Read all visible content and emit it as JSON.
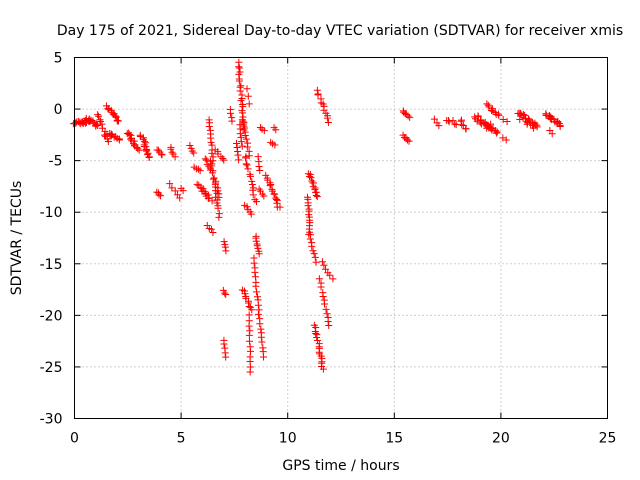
{
  "chart_data": {
    "type": "scatter",
    "title": "Day 175 of 2021, Sidereal Day-to-day VTEC variation (SDTVAR) for receiver xmis",
    "xlabel": "GPS time / hours",
    "ylabel": "SDTVAR / TECUs",
    "xlim": [
      0,
      25
    ],
    "ylim": [
      -30,
      5
    ],
    "xticks": [
      0,
      5,
      10,
      15,
      20,
      25
    ],
    "yticks": [
      5,
      0,
      -5,
      -10,
      -15,
      -20,
      -25,
      -30
    ],
    "xtick_labels": [
      "0",
      "5",
      "10",
      "15",
      "20",
      "25"
    ],
    "ytick_labels": [
      "5",
      "0",
      "-5",
      "-10",
      "-15",
      "-20",
      "-25",
      "-30"
    ],
    "grid": true,
    "marker": "plus",
    "color": "#ff0000",
    "segments": [
      {
        "from": [
          0.0,
          -1.3
        ],
        "to": [
          0.6,
          -1.3
        ],
        "n": 14,
        "spread": 0.25
      },
      {
        "from": [
          0.5,
          -1.0
        ],
        "to": [
          1.1,
          -1.5
        ],
        "n": 16,
        "spread": 0.45
      },
      {
        "from": [
          1.1,
          -0.5
        ],
        "to": [
          1.3,
          -1.8
        ],
        "n": 6,
        "spread": 0.2
      },
      {
        "from": [
          1.5,
          0.2
        ],
        "to": [
          2.1,
          -1.2
        ],
        "n": 14,
        "spread": 0.25
      },
      {
        "from": [
          1.5,
          -2.3
        ],
        "to": [
          2.1,
          -2.9
        ],
        "n": 12,
        "spread": 0.35
      },
      {
        "from": [
          1.4,
          -2.5
        ],
        "to": [
          1.6,
          -3.1
        ],
        "n": 4,
        "spread": 0.1
      },
      {
        "from": [
          2.5,
          -2.3
        ],
        "to": [
          3.0,
          -4.0
        ],
        "n": 14,
        "spread": 0.3
      },
      {
        "from": [
          3.1,
          -2.5
        ],
        "to": [
          3.5,
          -4.5
        ],
        "n": 12,
        "spread": 0.3
      },
      {
        "from": [
          3.3,
          -3.5
        ],
        "to": [
          3.5,
          -4.7
        ],
        "n": 4,
        "spread": 0.15
      },
      {
        "from": [
          3.9,
          -3.9
        ],
        "to": [
          4.1,
          -4.5
        ],
        "n": 5,
        "spread": 0.15
      },
      {
        "from": [
          3.85,
          -8.0
        ],
        "to": [
          4.05,
          -8.4
        ],
        "n": 4,
        "spread": 0.1
      },
      {
        "from": [
          4.5,
          -3.7
        ],
        "to": [
          4.7,
          -4.6
        ],
        "n": 5,
        "spread": 0.15
      },
      {
        "from": [
          4.5,
          -7.3
        ],
        "to": [
          4.9,
          -8.6
        ],
        "n": 5,
        "spread": 0.2
      },
      {
        "from": [
          5.0,
          -7.7
        ],
        "to": [
          5.1,
          -7.9
        ],
        "n": 2,
        "spread": 0.05
      },
      {
        "from": [
          5.4,
          -3.5
        ],
        "to": [
          5.6,
          -4.3
        ],
        "n": 4,
        "spread": 0.1
      },
      {
        "from": [
          5.6,
          -5.6
        ],
        "to": [
          5.9,
          -6.0
        ],
        "n": 4,
        "spread": 0.1
      },
      {
        "from": [
          5.8,
          -7.2
        ],
        "to": [
          6.4,
          -8.8
        ],
        "n": 14,
        "spread": 0.3
      },
      {
        "from": [
          6.1,
          -4.8
        ],
        "to": [
          6.4,
          -6.0
        ],
        "n": 6,
        "spread": 0.2
      },
      {
        "from": [
          6.2,
          -11.3
        ],
        "to": [
          6.5,
          -11.9
        ],
        "n": 4,
        "spread": 0.15
      },
      {
        "from": [
          6.3,
          -1.0
        ],
        "to": [
          6.5,
          -5.0
        ],
        "n": 12,
        "spread": 0.12
      },
      {
        "from": [
          6.4,
          -5.0
        ],
        "to": [
          6.8,
          -10.4
        ],
        "n": 18,
        "spread": 0.3
      },
      {
        "from": [
          6.6,
          -7.0
        ],
        "to": [
          6.8,
          -8.6
        ],
        "n": 6,
        "spread": 0.2
      },
      {
        "from": [
          6.6,
          -4.0
        ],
        "to": [
          7.0,
          -5.0
        ],
        "n": 6,
        "spread": 0.2
      },
      {
        "from": [
          7.0,
          -12.9
        ],
        "to": [
          7.1,
          -13.7
        ],
        "n": 4,
        "spread": 0.1
      },
      {
        "from": [
          7.0,
          -17.6
        ],
        "to": [
          7.1,
          -18.0
        ],
        "n": 3,
        "spread": 0.1
      },
      {
        "from": [
          7.0,
          -22.4
        ],
        "to": [
          7.1,
          -24.0
        ],
        "n": 5,
        "spread": 0.1
      },
      {
        "from": [
          7.3,
          0.0
        ],
        "to": [
          7.4,
          -1.2
        ],
        "n": 4,
        "spread": 0.1
      },
      {
        "from": [
          7.7,
          4.5
        ],
        "to": [
          7.95,
          -2.0
        ],
        "n": 22,
        "spread": 0.2
      },
      {
        "from": [
          7.9,
          -1.0
        ],
        "to": [
          8.2,
          -4.5
        ],
        "n": 10,
        "spread": 0.15
      },
      {
        "from": [
          7.75,
          -1.5
        ],
        "to": [
          7.85,
          -3.6
        ],
        "n": 6,
        "spread": 0.1
      },
      {
        "from": [
          7.6,
          -3.3
        ],
        "to": [
          7.7,
          -4.9
        ],
        "n": 5,
        "spread": 0.1
      },
      {
        "from": [
          8.0,
          -4.5
        ],
        "to": [
          8.5,
          -9.0
        ],
        "n": 14,
        "spread": 0.25
      },
      {
        "from": [
          8.0,
          -9.3
        ],
        "to": [
          8.3,
          -10.2
        ],
        "n": 5,
        "spread": 0.1
      },
      {
        "from": [
          8.1,
          2.0
        ],
        "to": [
          8.2,
          0.5
        ],
        "n": 3,
        "spread": 0.05
      },
      {
        "from": [
          7.9,
          -17.5
        ],
        "to": [
          8.3,
          -19.5
        ],
        "n": 10,
        "spread": 0.2
      },
      {
        "from": [
          8.2,
          -20.0
        ],
        "to": [
          8.25,
          -25.5
        ],
        "n": 12,
        "spread": 0.12
      },
      {
        "from": [
          8.5,
          -12.3
        ],
        "to": [
          8.65,
          -14.0
        ],
        "n": 8,
        "spread": 0.1
      },
      {
        "from": [
          8.4,
          -14.5
        ],
        "to": [
          8.85,
          -24.0
        ],
        "n": 22,
        "spread": 0.15
      },
      {
        "from": [
          8.6,
          -4.6
        ],
        "to": [
          8.7,
          -6.0
        ],
        "n": 4,
        "spread": 0.1
      },
      {
        "from": [
          8.65,
          -7.8
        ],
        "to": [
          8.9,
          -8.4
        ],
        "n": 4,
        "spread": 0.1
      },
      {
        "from": [
          8.7,
          -1.8
        ],
        "to": [
          8.9,
          -2.1
        ],
        "n": 3,
        "spread": 0.1
      },
      {
        "from": [
          9.0,
          -6.5
        ],
        "to": [
          9.6,
          -9.6
        ],
        "n": 16,
        "spread": 0.25
      },
      {
        "from": [
          9.2,
          -3.2
        ],
        "to": [
          9.4,
          -3.5
        ],
        "n": 3,
        "spread": 0.05
      },
      {
        "from": [
          9.35,
          -1.8
        ],
        "to": [
          9.45,
          -2.0
        ],
        "n": 2,
        "spread": 0.05
      },
      {
        "from": [
          11.0,
          -6.2
        ],
        "to": [
          11.4,
          -8.5
        ],
        "n": 14,
        "spread": 0.2
      },
      {
        "from": [
          10.95,
          -8.5
        ],
        "to": [
          11.05,
          -12.2
        ],
        "n": 14,
        "spread": 0.12
      },
      {
        "from": [
          11.0,
          -12.2
        ],
        "to": [
          11.35,
          -14.8
        ],
        "n": 8,
        "spread": 0.12
      },
      {
        "from": [
          11.35,
          1.8
        ],
        "to": [
          11.95,
          -1.2
        ],
        "n": 12,
        "spread": 0.25
      },
      {
        "from": [
          11.6,
          -14.8
        ],
        "to": [
          12.1,
          -16.5
        ],
        "n": 6,
        "spread": 0.15
      },
      {
        "from": [
          11.5,
          -16.5
        ],
        "to": [
          11.95,
          -21.0
        ],
        "n": 12,
        "spread": 0.15
      },
      {
        "from": [
          11.3,
          -21.0
        ],
        "to": [
          11.65,
          -25.2
        ],
        "n": 18,
        "spread": 0.25
      },
      {
        "from": [
          15.4,
          -0.1
        ],
        "to": [
          15.7,
          -0.8
        ],
        "n": 6,
        "spread": 0.15
      },
      {
        "from": [
          15.4,
          -2.6
        ],
        "to": [
          15.7,
          -3.1
        ],
        "n": 6,
        "spread": 0.15
      },
      {
        "from": [
          16.9,
          -1.0
        ],
        "to": [
          17.1,
          -1.6
        ],
        "n": 3,
        "spread": 0.1
      },
      {
        "from": [
          17.4,
          -1.0
        ],
        "to": [
          17.9,
          -1.4
        ],
        "n": 6,
        "spread": 0.3
      },
      {
        "from": [
          18.1,
          -1.0
        ],
        "to": [
          18.4,
          -2.0
        ],
        "n": 6,
        "spread": 0.3
      },
      {
        "from": [
          18.8,
          -0.8
        ],
        "to": [
          19.8,
          -2.2
        ],
        "n": 30,
        "spread": 0.55
      },
      {
        "from": [
          19.4,
          0.4
        ],
        "to": [
          19.9,
          -0.6
        ],
        "n": 10,
        "spread": 0.35
      },
      {
        "from": [
          20.1,
          -1.0
        ],
        "to": [
          20.3,
          -1.2
        ],
        "n": 2,
        "spread": 0.05
      },
      {
        "from": [
          20.1,
          -2.8
        ],
        "to": [
          20.25,
          -3.0
        ],
        "n": 2,
        "spread": 0.05
      },
      {
        "from": [
          20.8,
          -0.5
        ],
        "to": [
          21.7,
          -1.7
        ],
        "n": 26,
        "spread": 0.55
      },
      {
        "from": [
          22.1,
          -0.5
        ],
        "to": [
          22.8,
          -1.6
        ],
        "n": 20,
        "spread": 0.45
      },
      {
        "from": [
          22.3,
          -2.1
        ],
        "to": [
          22.4,
          -2.4
        ],
        "n": 2,
        "spread": 0.05
      }
    ]
  }
}
